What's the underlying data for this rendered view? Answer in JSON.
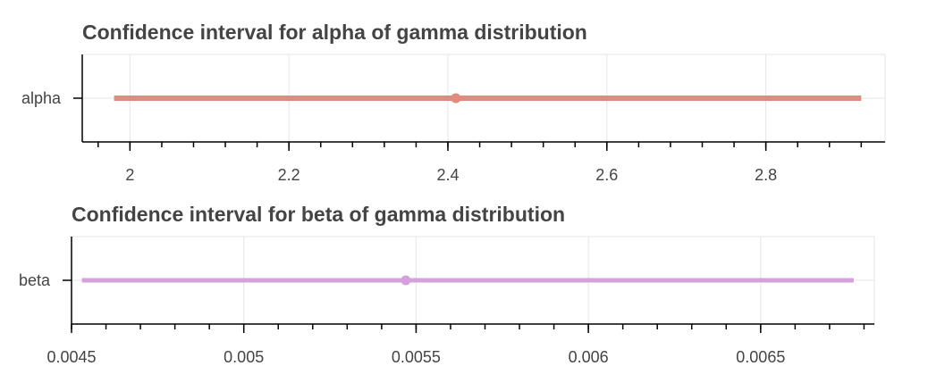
{
  "chart_data": [
    {
      "type": "interval",
      "title": "Confidence interval for alpha of gamma distribution",
      "category": "alpha",
      "xlim": [
        1.94,
        2.95
      ],
      "major_ticks": [
        2,
        2.2,
        2.4,
        2.6,
        2.8
      ],
      "tick_labels": [
        "2",
        "2.2",
        "2.4",
        "2.6",
        "2.8"
      ],
      "minor_step": 0.04,
      "lower": 1.98,
      "estimate": 2.41,
      "upper": 2.92,
      "color": "#e08a80",
      "grid": true
    },
    {
      "type": "interval",
      "title": "Confidence interval for beta of gamma distribution",
      "category": "beta",
      "xlim": [
        0.0045,
        0.00683
      ],
      "major_ticks": [
        0.0045,
        0.005,
        0.0055,
        0.006,
        0.0065
      ],
      "tick_labels": [
        "0.0045",
        "0.005",
        "0.0055",
        "0.006",
        "0.0065"
      ],
      "minor_step": 0.0001,
      "lower": 0.00453,
      "estimate": 0.00547,
      "upper": 0.00677,
      "color": "#d4a2da",
      "grid": true
    }
  ]
}
